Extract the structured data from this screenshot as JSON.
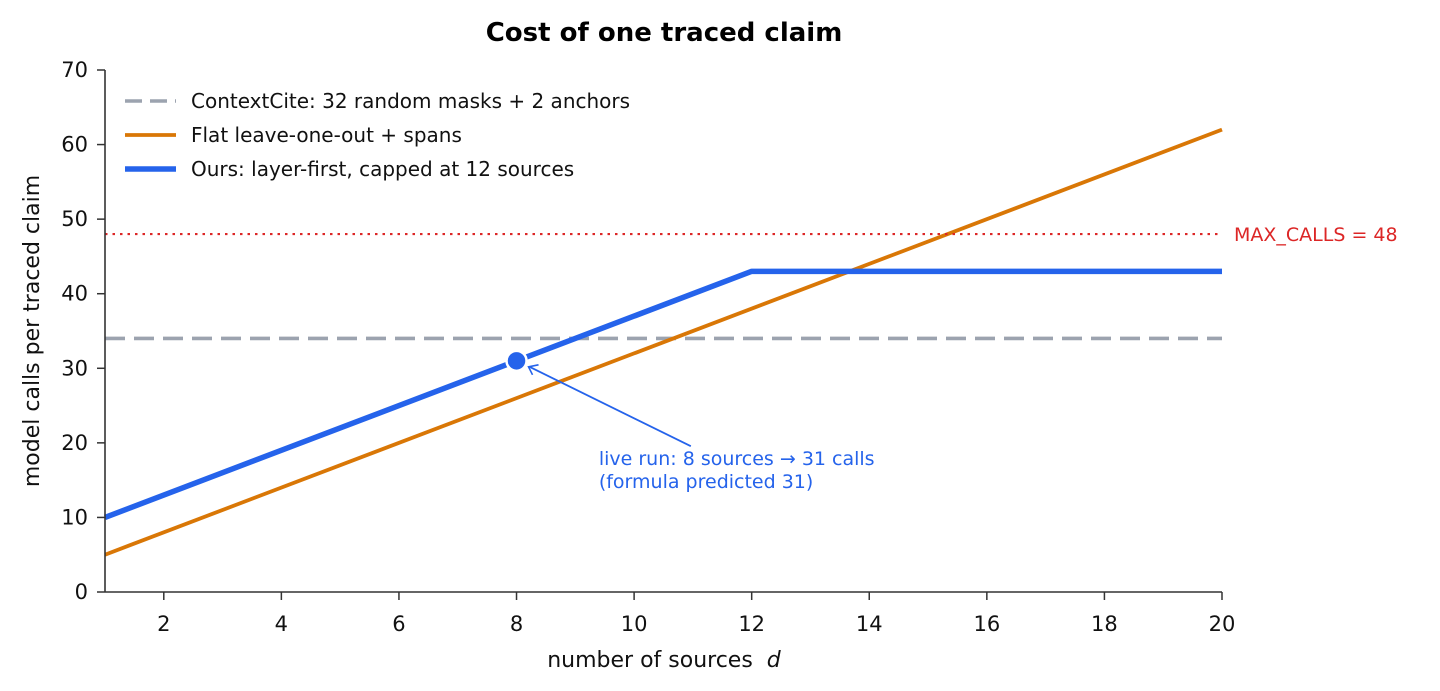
{
  "chart_data": {
    "type": "line",
    "title": "Cost of one traced claim",
    "xlabel": "number of sources",
    "xlabel_var": "d",
    "ylabel": "model calls per traced claim",
    "xlim": [
      1,
      20
    ],
    "ylim": [
      0,
      70
    ],
    "x_ticks": [
      2,
      4,
      6,
      8,
      10,
      12,
      14,
      16,
      18,
      20
    ],
    "y_ticks": [
      0,
      10,
      20,
      30,
      40,
      50,
      60,
      70
    ],
    "grid": false,
    "legend_position": "top-left",
    "series": [
      {
        "name": "ContextCite: 32 random masks + 2 anchors",
        "style": "dashed",
        "color": "#9ca3af",
        "x": [
          1,
          20
        ],
        "y": [
          34,
          34
        ]
      },
      {
        "name": "Flat leave-one-out + spans",
        "style": "solid",
        "color": "#d97706",
        "x": [
          1,
          20
        ],
        "y": [
          5,
          62
        ]
      },
      {
        "name": "Ours: layer-first, capped at 12 sources",
        "style": "solid",
        "color": "#2563eb",
        "x": [
          1,
          12,
          20
        ],
        "y": [
          10,
          43,
          43
        ]
      }
    ],
    "reference_line": {
      "label": "MAX_CALLS = 48",
      "y": 48,
      "style": "dotted",
      "color": "#dc2626"
    },
    "annotation": {
      "point": [
        8,
        31
      ],
      "text_x": 9.4,
      "text_y": 17,
      "lines": [
        "live run: 8 sources → 31 calls",
        "(formula predicted 31)"
      ],
      "color": "#2563eb"
    }
  }
}
